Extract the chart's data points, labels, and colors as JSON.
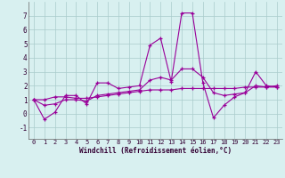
{
  "xlabel": "Windchill (Refroidissement éolien,°C)",
  "background_color": "#d8f0f0",
  "grid_color": "#aacccc",
  "line_color": "#990099",
  "xlim": [
    -0.5,
    23.5
  ],
  "ylim": [
    -1.8,
    8.0
  ],
  "xticks": [
    0,
    1,
    2,
    3,
    4,
    5,
    6,
    7,
    8,
    9,
    10,
    11,
    12,
    13,
    14,
    15,
    16,
    17,
    18,
    19,
    20,
    21,
    22,
    23
  ],
  "yticks": [
    -1,
    0,
    1,
    2,
    3,
    4,
    5,
    6,
    7
  ],
  "series": [
    [
      1.0,
      -0.4,
      0.1,
      1.3,
      1.3,
      0.7,
      2.2,
      2.2,
      1.8,
      1.9,
      2.0,
      4.9,
      5.4,
      2.3,
      7.2,
      7.2,
      2.2,
      -0.3,
      0.6,
      1.2,
      1.5,
      3.0,
      2.0,
      1.9
    ],
    [
      1.0,
      1.0,
      1.2,
      1.2,
      1.1,
      1.1,
      1.2,
      1.3,
      1.4,
      1.5,
      1.6,
      1.7,
      1.7,
      1.7,
      1.8,
      1.8,
      1.8,
      1.8,
      1.8,
      1.8,
      1.9,
      1.9,
      1.9,
      2.0
    ],
    [
      1.0,
      0.6,
      0.7,
      1.0,
      1.0,
      0.9,
      1.3,
      1.4,
      1.5,
      1.6,
      1.7,
      2.4,
      2.6,
      2.4,
      3.2,
      3.2,
      2.6,
      1.5,
      1.3,
      1.4,
      1.5,
      2.0,
      1.9,
      1.9
    ]
  ]
}
